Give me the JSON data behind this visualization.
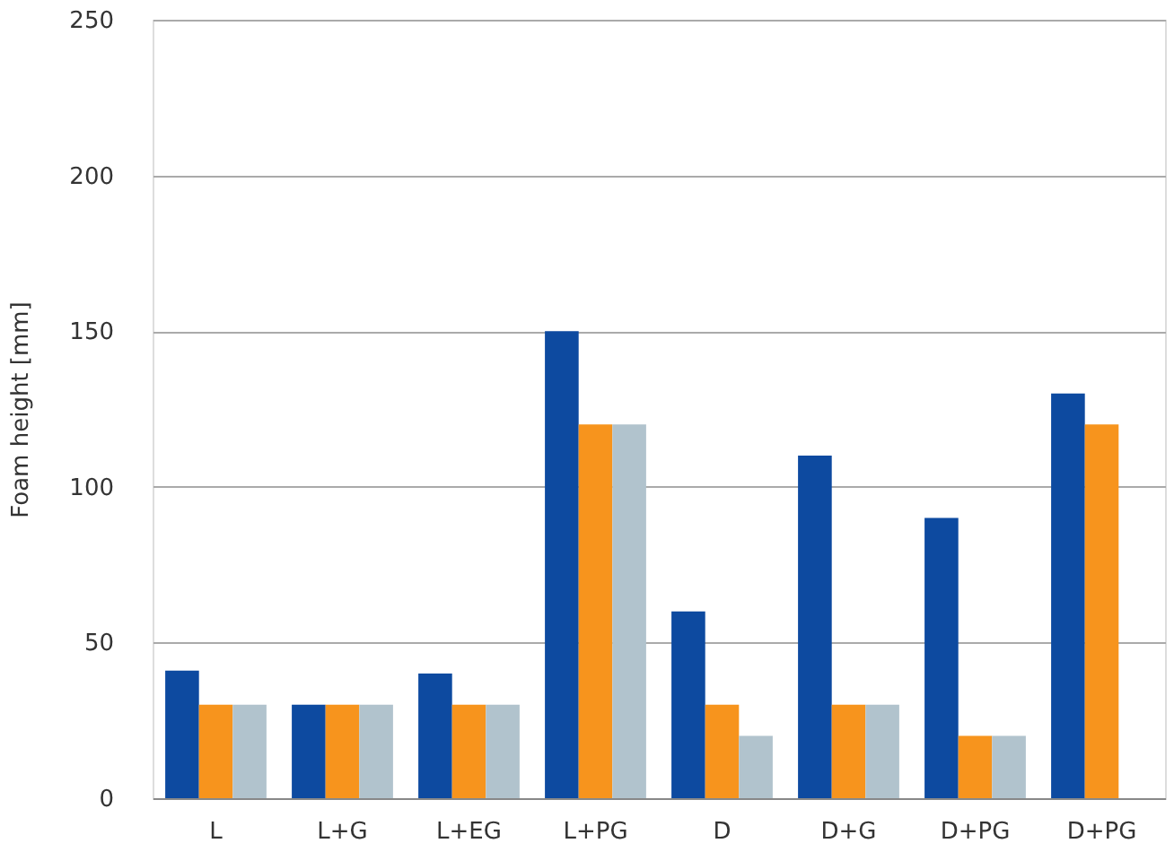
{
  "chart_data": {
    "type": "bar",
    "ylabel": "Foam height [mm]",
    "categories": [
      "L",
      "L+G",
      "L+EG",
      "L+PG",
      "D",
      "D+G",
      "D+PG",
      "D+PG"
    ],
    "series": [
      {
        "color": "#0d4aa0",
        "values": [
          41,
          30,
          40,
          150,
          60,
          110,
          90,
          130
        ]
      },
      {
        "color": "#f7941d",
        "values": [
          30,
          30,
          30,
          120,
          30,
          30,
          20,
          120
        ]
      },
      {
        "color": "#b1c3cd",
        "values": [
          30,
          30,
          30,
          120,
          20,
          30,
          20,
          null
        ]
      }
    ],
    "ylim": [
      0,
      250
    ],
    "yticks": [
      0,
      50,
      100,
      150,
      200,
      250
    ],
    "grid": "y",
    "legend": false
  }
}
